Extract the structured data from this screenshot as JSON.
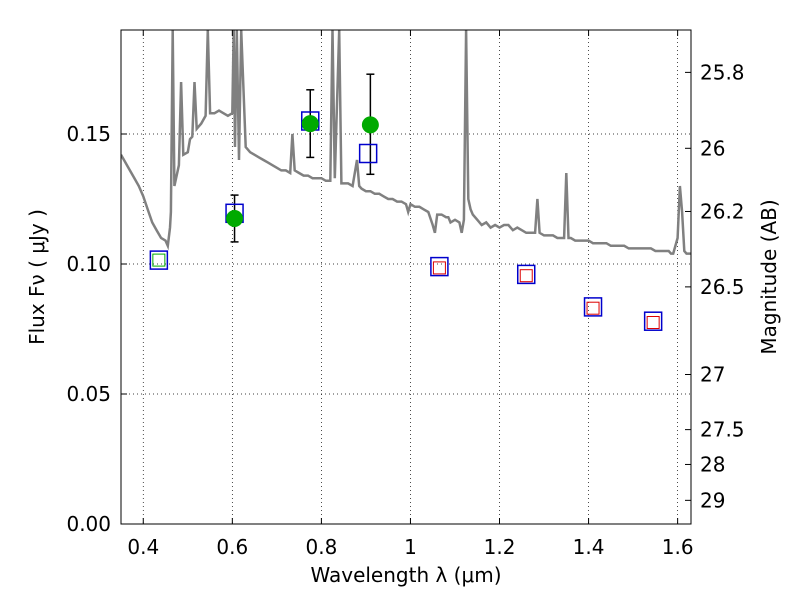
{
  "chart_data": {
    "type": "scatter",
    "xlabel": "Wavelength  λ (μm)",
    "ylabel": "Flux  Fν  ( μJy )",
    "ylabel_right": "Magnitude (AB)",
    "xlim": [
      0.35,
      1.63
    ],
    "ylim": [
      0.0,
      0.19
    ],
    "grid": true,
    "x_ticks": [
      0.4,
      0.6,
      0.8,
      1.0,
      1.2,
      1.4,
      1.6
    ],
    "x_tick_labels": [
      "0.4",
      "0.6",
      "0.8",
      "1",
      "1.2",
      "1.4",
      "1.6"
    ],
    "y_ticks": [
      0.0,
      0.05,
      0.1,
      0.15
    ],
    "y_tick_labels": [
      "0.00",
      "0.05",
      "0.10",
      "0.15"
    ],
    "right_ticks": [
      {
        "label": "25.8",
        "flux": 0.1737
      },
      {
        "label": "26",
        "flux": 0.1445
      },
      {
        "label": "26.2",
        "flux": 0.1202
      },
      {
        "label": "26.5",
        "flux": 0.0912
      },
      {
        "label": "27",
        "flux": 0.0575
      },
      {
        "label": "27.5",
        "flux": 0.0363
      },
      {
        "label": "28",
        "flux": 0.0229
      },
      {
        "label": "29",
        "flux": 0.0091
      }
    ],
    "colors": {
      "observed": "#00aa00",
      "model_band": "#0000cc",
      "model_ir": "#dd0000",
      "sed": "#808080",
      "errorbar": "#000000"
    },
    "series": [
      {
        "type": "scatter",
        "marker": "circle",
        "points": [
          {
            "x": 0.605,
            "y": 0.1175,
            "yerr": [
              0.1085,
              0.1265
            ]
          },
          {
            "x": 0.775,
            "y": 0.154,
            "yerr": [
              0.141,
              0.167
            ]
          },
          {
            "x": 0.91,
            "y": 0.1535,
            "yerr": [
              0.1345,
              0.173
            ]
          }
        ]
      },
      {
        "type": "scatter",
        "marker": "square",
        "points": [
          {
            "x": 0.435,
            "y": 0.1015
          },
          {
            "x": 0.605,
            "y": 0.1195
          },
          {
            "x": 0.775,
            "y": 0.155
          },
          {
            "x": 0.905,
            "y": 0.1425
          },
          {
            "x": 1.065,
            "y": 0.099
          },
          {
            "x": 1.26,
            "y": 0.096
          },
          {
            "x": 1.41,
            "y": 0.0835
          },
          {
            "x": 1.545,
            "y": 0.078
          }
        ]
      },
      {
        "type": "scatter",
        "marker": "square-small",
        "points": [
          {
            "x": 1.065,
            "y": 0.0985
          },
          {
            "x": 1.26,
            "y": 0.0955
          },
          {
            "x": 1.41,
            "y": 0.083
          },
          {
            "x": 1.545,
            "y": 0.0775
          }
        ]
      },
      {
        "type": "line",
        "points": [
          [
            0.35,
            0.142
          ],
          [
            0.36,
            0.139
          ],
          [
            0.37,
            0.136
          ],
          [
            0.38,
            0.133
          ],
          [
            0.39,
            0.13
          ],
          [
            0.4,
            0.126
          ],
          [
            0.41,
            0.121
          ],
          [
            0.42,
            0.116
          ],
          [
            0.43,
            0.113
          ],
          [
            0.44,
            0.11
          ],
          [
            0.45,
            0.109
          ],
          [
            0.455,
            0.107
          ],
          [
            0.46,
            0.114
          ],
          [
            0.462,
            0.12
          ],
          [
            0.466,
            0.19
          ],
          [
            0.47,
            0.13
          ],
          [
            0.48,
            0.138
          ],
          [
            0.485,
            0.17
          ],
          [
            0.49,
            0.142
          ],
          [
            0.5,
            0.143
          ],
          [
            0.505,
            0.148
          ],
          [
            0.51,
            0.149
          ],
          [
            0.515,
            0.17
          ],
          [
            0.52,
            0.152
          ],
          [
            0.53,
            0.154
          ],
          [
            0.54,
            0.157
          ],
          [
            0.545,
            0.19
          ],
          [
            0.55,
            0.158
          ],
          [
            0.56,
            0.158
          ],
          [
            0.57,
            0.159
          ],
          [
            0.58,
            0.158
          ],
          [
            0.59,
            0.157
          ],
          [
            0.6,
            0.158
          ],
          [
            0.603,
            0.19
          ],
          [
            0.606,
            0.145
          ],
          [
            0.61,
            0.19
          ],
          [
            0.615,
            0.14
          ],
          [
            0.62,
            0.19
          ],
          [
            0.63,
            0.145
          ],
          [
            0.64,
            0.143
          ],
          [
            0.65,
            0.142
          ],
          [
            0.66,
            0.141
          ],
          [
            0.67,
            0.14
          ],
          [
            0.68,
            0.139
          ],
          [
            0.69,
            0.138
          ],
          [
            0.7,
            0.137
          ],
          [
            0.71,
            0.136
          ],
          [
            0.72,
            0.136
          ],
          [
            0.73,
            0.135
          ],
          [
            0.735,
            0.15
          ],
          [
            0.74,
            0.136
          ],
          [
            0.75,
            0.135
          ],
          [
            0.76,
            0.134
          ],
          [
            0.77,
            0.134
          ],
          [
            0.78,
            0.133
          ],
          [
            0.79,
            0.133
          ],
          [
            0.8,
            0.133
          ],
          [
            0.81,
            0.132
          ],
          [
            0.82,
            0.132
          ],
          [
            0.825,
            0.19
          ],
          [
            0.83,
            0.133
          ],
          [
            0.84,
            0.19
          ],
          [
            0.845,
            0.131
          ],
          [
            0.85,
            0.131
          ],
          [
            0.86,
            0.131
          ],
          [
            0.87,
            0.13
          ],
          [
            0.88,
            0.14
          ],
          [
            0.885,
            0.13
          ],
          [
            0.89,
            0.129
          ],
          [
            0.9,
            0.128
          ],
          [
            0.91,
            0.128
          ],
          [
            0.92,
            0.127
          ],
          [
            0.93,
            0.127
          ],
          [
            0.94,
            0.126
          ],
          [
            0.95,
            0.125
          ],
          [
            0.96,
            0.125
          ],
          [
            0.97,
            0.124
          ],
          [
            0.98,
            0.124
          ],
          [
            0.99,
            0.123
          ],
          [
            0.995,
            0.12
          ],
          [
            1.0,
            0.123
          ],
          [
            1.01,
            0.122
          ],
          [
            1.02,
            0.122
          ],
          [
            1.03,
            0.121
          ],
          [
            1.04,
            0.12
          ],
          [
            1.05,
            0.115
          ],
          [
            1.055,
            0.112
          ],
          [
            1.06,
            0.119
          ],
          [
            1.07,
            0.119
          ],
          [
            1.08,
            0.118
          ],
          [
            1.085,
            0.118
          ],
          [
            1.09,
            0.116
          ],
          [
            1.1,
            0.117
          ],
          [
            1.11,
            0.116
          ],
          [
            1.115,
            0.112
          ],
          [
            1.12,
            0.117
          ],
          [
            1.125,
            0.19
          ],
          [
            1.13,
            0.125
          ],
          [
            1.135,
            0.121
          ],
          [
            1.14,
            0.119
          ],
          [
            1.15,
            0.117
          ],
          [
            1.16,
            0.115
          ],
          [
            1.17,
            0.116
          ],
          [
            1.18,
            0.114
          ],
          [
            1.19,
            0.115
          ],
          [
            1.2,
            0.114
          ],
          [
            1.21,
            0.115
          ],
          [
            1.22,
            0.115
          ],
          [
            1.23,
            0.113
          ],
          [
            1.24,
            0.114
          ],
          [
            1.25,
            0.113
          ],
          [
            1.26,
            0.112
          ],
          [
            1.27,
            0.112
          ],
          [
            1.28,
            0.112
          ],
          [
            1.285,
            0.125
          ],
          [
            1.29,
            0.112
          ],
          [
            1.3,
            0.111
          ],
          [
            1.31,
            0.111
          ],
          [
            1.32,
            0.111
          ],
          [
            1.33,
            0.11
          ],
          [
            1.34,
            0.11
          ],
          [
            1.345,
            0.11
          ],
          [
            1.35,
            0.135
          ],
          [
            1.355,
            0.11
          ],
          [
            1.36,
            0.11
          ],
          [
            1.37,
            0.109
          ],
          [
            1.38,
            0.109
          ],
          [
            1.39,
            0.109
          ],
          [
            1.4,
            0.109
          ],
          [
            1.41,
            0.108
          ],
          [
            1.42,
            0.108
          ],
          [
            1.43,
            0.108
          ],
          [
            1.44,
            0.108
          ],
          [
            1.45,
            0.107
          ],
          [
            1.46,
            0.107
          ],
          [
            1.47,
            0.107
          ],
          [
            1.48,
            0.107
          ],
          [
            1.49,
            0.106
          ],
          [
            1.5,
            0.106
          ],
          [
            1.51,
            0.106
          ],
          [
            1.52,
            0.106
          ],
          [
            1.53,
            0.106
          ],
          [
            1.54,
            0.106
          ],
          [
            1.55,
            0.105
          ],
          [
            1.56,
            0.105
          ],
          [
            1.57,
            0.105
          ],
          [
            1.58,
            0.105
          ],
          [
            1.585,
            0.104
          ],
          [
            1.59,
            0.104
          ],
          [
            1.6,
            0.11
          ],
          [
            1.605,
            0.13
          ],
          [
            1.61,
            0.12
          ],
          [
            1.615,
            0.105
          ],
          [
            1.62,
            0.104
          ],
          [
            1.63,
            0.104
          ]
        ]
      }
    ]
  }
}
